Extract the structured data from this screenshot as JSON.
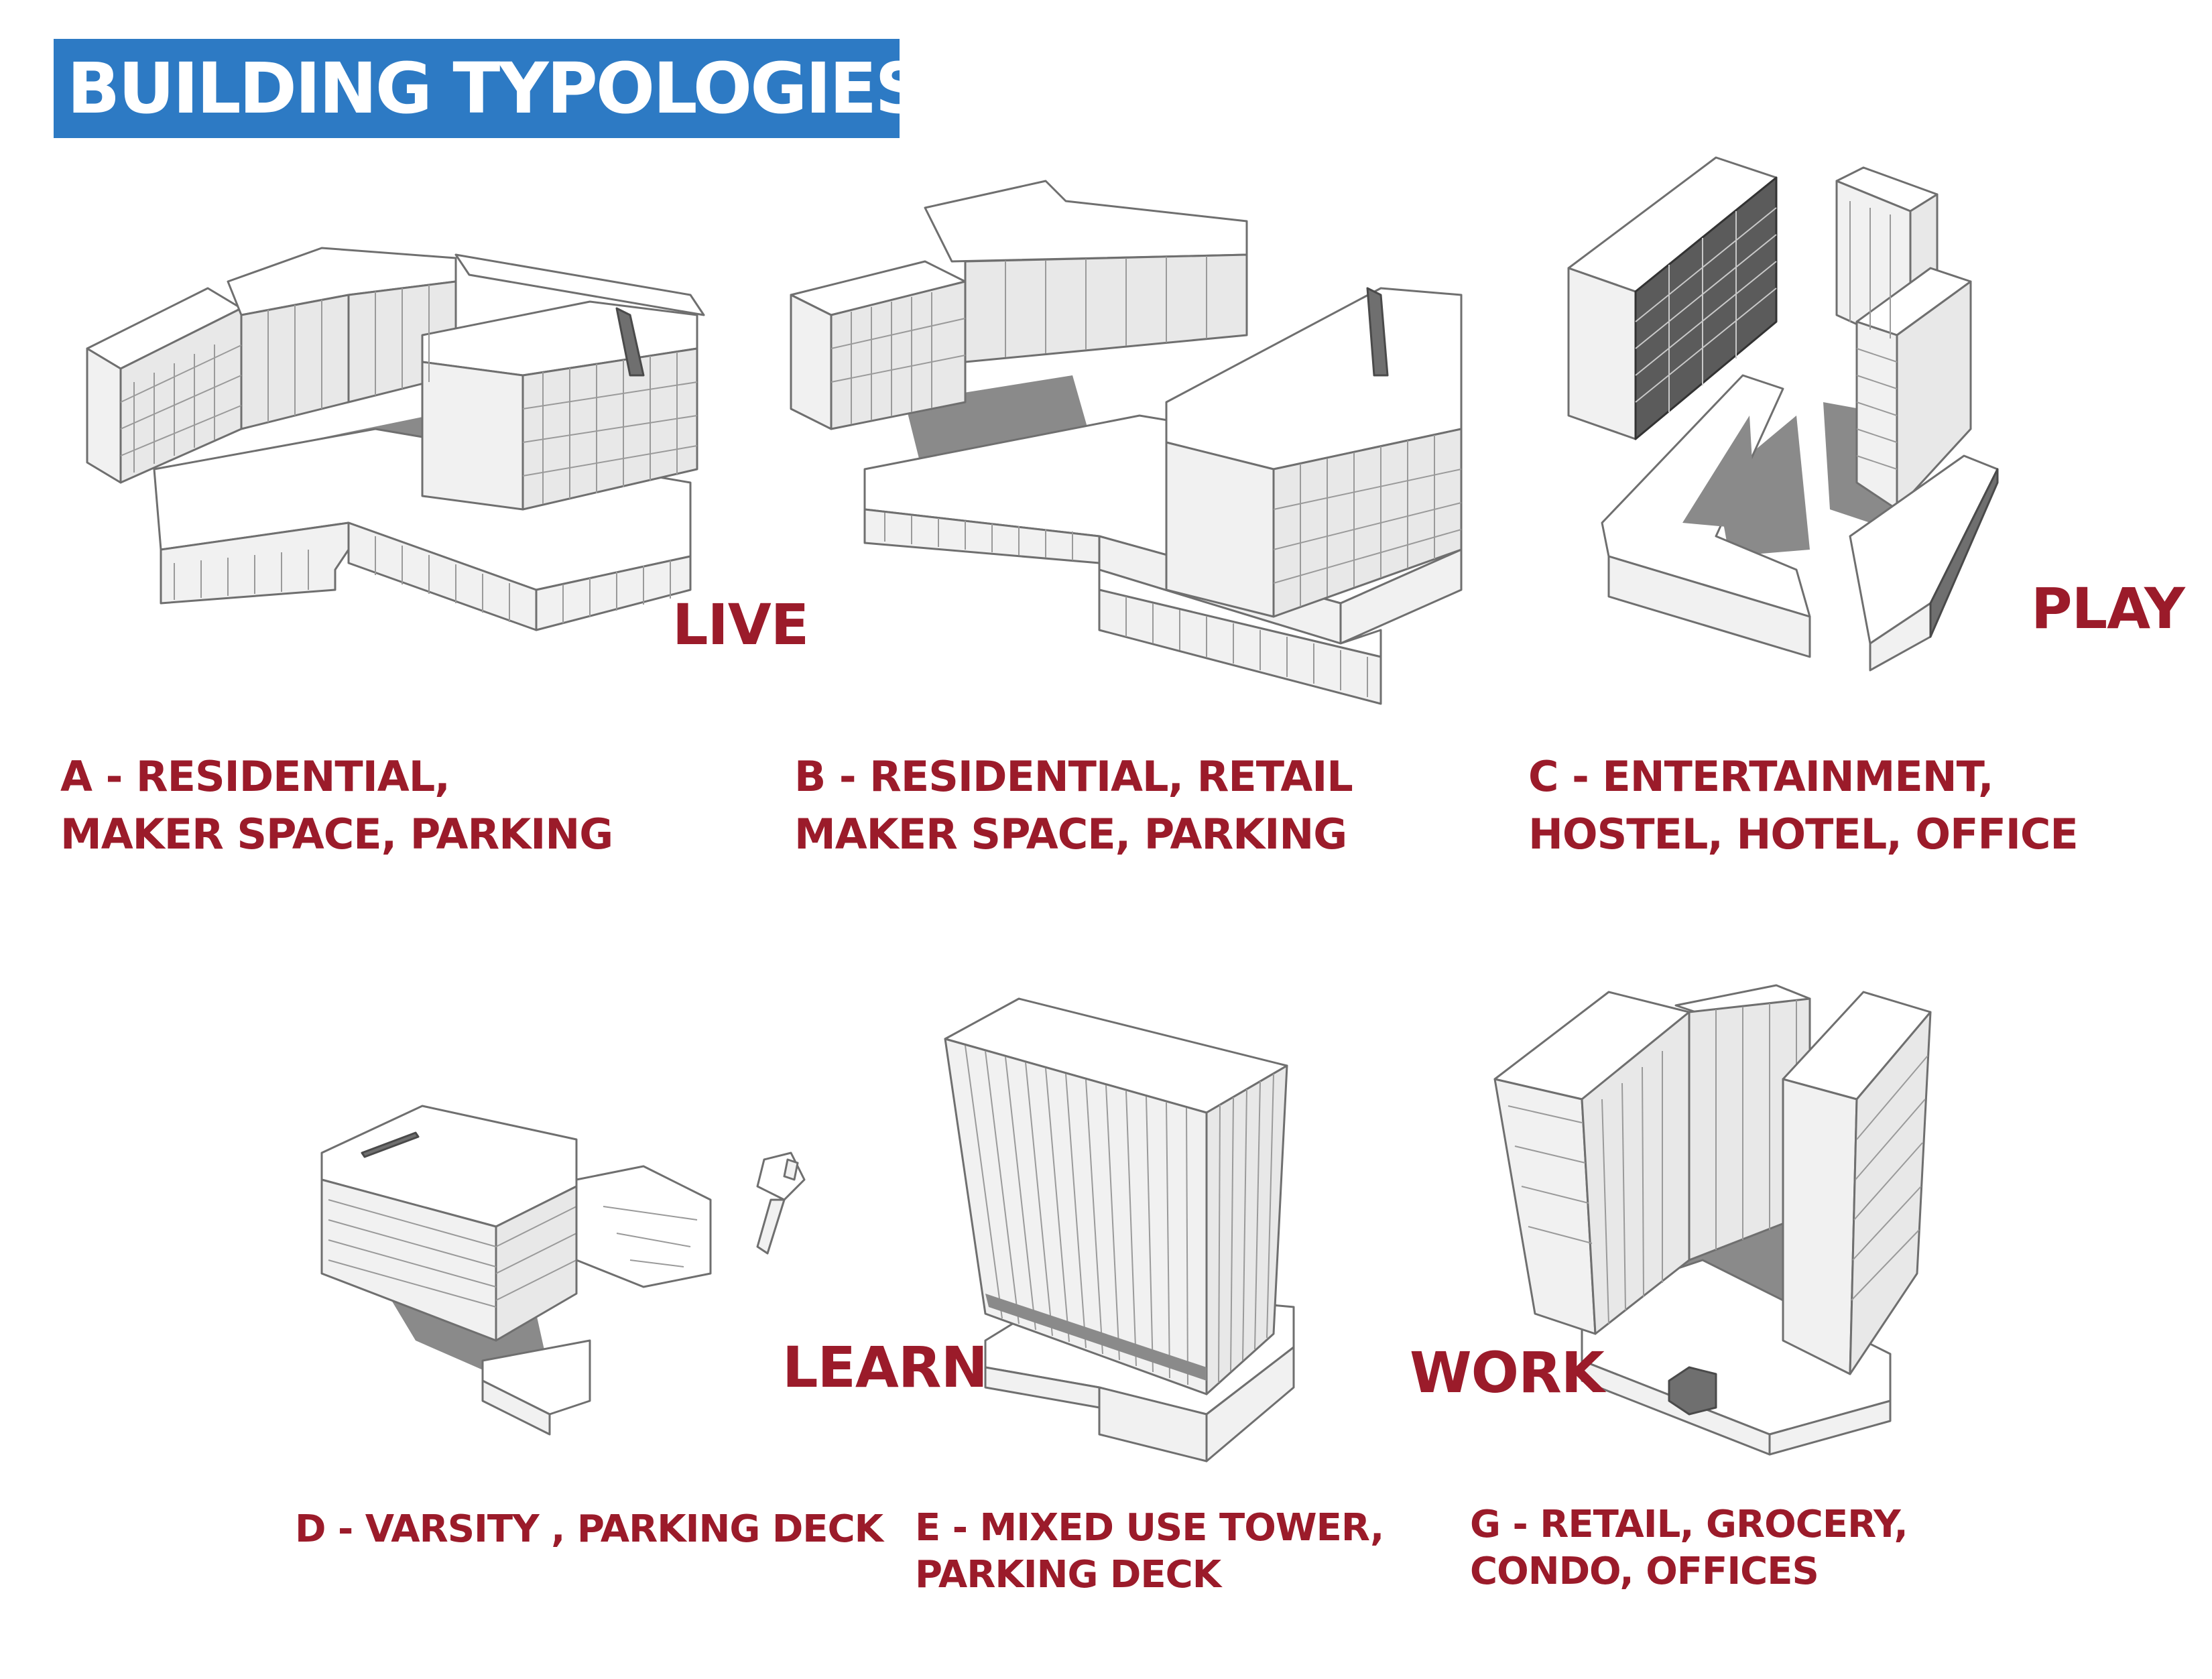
{
  "title": "BUILDING TYPOLOGIES",
  "colors": {
    "title_bg": "#2d7ac4",
    "title_text": "#ffffff",
    "label_red": "#9b1b2a",
    "model_line": "#6f6f6f",
    "model_shadow": "#8a8a8a"
  },
  "typologies": [
    {
      "id": "A",
      "category": "LIVE",
      "lines": [
        "A - RESIDENTIAL,",
        "MAKER SPACE, PARKING"
      ]
    },
    {
      "id": "B",
      "category": "",
      "lines": [
        "B - RESIDENTIAL, RETAIL",
        "MAKER SPACE, PARKING"
      ]
    },
    {
      "id": "C",
      "category": "PLAY",
      "lines": [
        "C - ENTERTAINMENT,",
        "HOSTEL, HOTEL, OFFICE"
      ]
    },
    {
      "id": "D",
      "category": "LEARN",
      "lines": [
        "D - VARSITY , PARKING DECK"
      ]
    },
    {
      "id": "E",
      "category": "",
      "lines": [
        "E - MIXED USE TOWER,",
        "PARKING DECK"
      ]
    },
    {
      "id": "G",
      "category": "WORK",
      "lines": [
        "G - RETAIL, GROCERY,",
        "CONDO, OFFICES"
      ]
    }
  ]
}
